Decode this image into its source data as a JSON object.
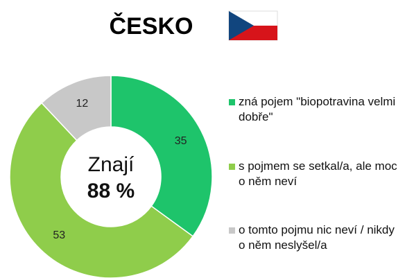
{
  "chart_data": {
    "type": "donut",
    "title": "ČESKO",
    "center_text": [
      "Znají",
      "88 %"
    ],
    "series": [
      {
        "name": "zná pojem \"biopotravina velmi dobře\"",
        "color": "#1ec46b",
        "value": 35
      },
      {
        "name": "s pojmem se setkal/a, ale moc o něm neví",
        "color": "#8fcd4b",
        "value": 53
      },
      {
        "name": "o tomto pojmu nic neví / nikdy o něm neslyšel/a",
        "color": "#c8c8c8",
        "value": 12
      }
    ]
  }
}
